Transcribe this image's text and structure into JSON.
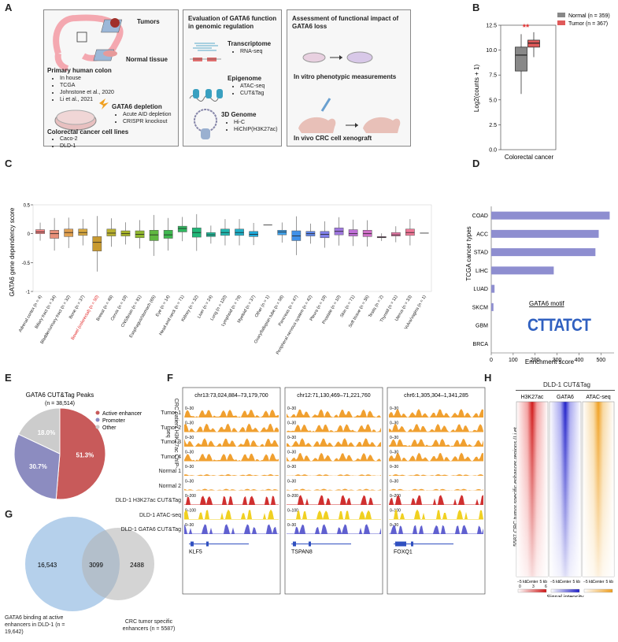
{
  "panels": {
    "A": "A",
    "B": "B",
    "C": "C",
    "D": "D",
    "E": "E",
    "F": "F",
    "G": "G",
    "H": "H"
  },
  "panelA": {
    "box1": {
      "tumors": "Tumors",
      "normal": "Normal tissue",
      "primary_title": "Primary human colon",
      "primary_items": [
        "In house",
        "TCGA",
        "Johnstone et al., 2020",
        "Li et al., 2021"
      ],
      "depletion_title": "GATA6 depletion",
      "depletion_items": [
        "Acute AID depletion",
        "CRISPR knockout"
      ],
      "lines_title": "Colorectal cancer cell lines",
      "lines_items": [
        "Caco-2",
        "DLD-1"
      ]
    },
    "box2": {
      "title": "Evaluation of GATA6 function in genomic regulation",
      "transcriptome": "Transcriptome",
      "transcriptome_items": [
        "RNA-seq"
      ],
      "epigenome": "Epigenome",
      "epigenome_items": [
        "ATAC-seq",
        "CUT&Tag"
      ],
      "genome3d": "3D Genome",
      "genome3d_items": [
        "Hi-C",
        "HiChIP(H3K27ac)"
      ]
    },
    "box3": {
      "title": "Assessment of functional impact of GATA6 loss",
      "invitro": "In vitro phenotypic measurements",
      "invivo": "In vivo CRC cell xenograft"
    }
  },
  "chart_data": [
    {
      "id": "B",
      "type": "box",
      "ylabel": "Log2(counts + 1)",
      "xlabel": "Colorectal cancer",
      "ylim": [
        0,
        12.5
      ],
      "yticks": [
        0.0,
        2.5,
        5.0,
        7.5,
        10.0,
        12.5
      ],
      "significance": "**",
      "series": [
        {
          "name": "Normal (n = 359)",
          "color": "#888888",
          "min": 5.6,
          "q1": 7.9,
          "median": 9.5,
          "q3": 10.3,
          "max": 11.6
        },
        {
          "name": "Tumor (n = 367)",
          "color": "#e05a5a",
          "min": 9.3,
          "q1": 10.3,
          "median": 10.7,
          "q3": 11.0,
          "max": 11.8
        }
      ]
    },
    {
      "id": "C",
      "type": "box",
      "ylabel": "GATA6 gene dependency score",
      "ylim": [
        -1.0,
        0.5
      ],
      "yticks": [
        0.5,
        0,
        -0.5,
        -1.0
      ],
      "highlight_index": 5,
      "categories": [
        "Adrenal cortex (n = 4)",
        "Biliary tract (n = 34)",
        "Bladder/urinary tract (n = 32)",
        "Bone (n = 37)",
        "Bowel (colorectal) (n = 50)",
        "Breast (n = 48)",
        "Cervix (n = 19)",
        "CNS/brain (n = 81)",
        "Esophagus/stomach (65)",
        "Eye (n = 14)",
        "Head and neck (n = 71)",
        "Kidney (n = 32)",
        "Liver (n = 24)",
        "Lung (n = 120)",
        "Lymphoid (n = 79)",
        "Myeloid (n = 37)",
        "Other (n = 1)",
        "Ovary/fallopian tube (n = 58)",
        "Pancreas (n = 47)",
        "Peripheral nervous system (n = 42)",
        "Pleura (n = 19)",
        "Prostate (n = 10)",
        "Skin (n = 71)",
        "Soft tissue (n = 36)",
        "Testis (n = 2)",
        "Thyroid (n = 11)",
        "Uterus (n = 33)",
        "Vulva/vagina (n = 1)"
      ],
      "boxes": [
        {
          "color": "#f08080",
          "q1": 0.0,
          "median": 0.03,
          "q3": 0.07
        },
        {
          "color": "#e8907a",
          "q1": -0.08,
          "median": 0.0,
          "q3": 0.06
        },
        {
          "color": "#e0a050",
          "q1": -0.05,
          "median": 0.02,
          "q3": 0.08
        },
        {
          "color": "#d8a840",
          "q1": -0.03,
          "median": 0.02,
          "q3": 0.08
        },
        {
          "color": "#c89a30",
          "q1": -0.3,
          "median": -0.15,
          "q3": -0.05
        },
        {
          "color": "#b8b030",
          "q1": -0.04,
          "median": 0.01,
          "q3": 0.08
        },
        {
          "color": "#a8b428",
          "q1": -0.04,
          "median": 0.0,
          "q3": 0.05
        },
        {
          "color": "#90b830",
          "q1": -0.07,
          "median": -0.01,
          "q3": 0.05
        },
        {
          "color": "#60b840",
          "q1": -0.12,
          "median": -0.02,
          "q3": 0.06
        },
        {
          "color": "#40b850",
          "q1": -0.08,
          "median": -0.02,
          "q3": 0.06
        },
        {
          "color": "#30b860",
          "q1": 0.03,
          "median": 0.09,
          "q3": 0.13
        },
        {
          "color": "#20b878",
          "q1": -0.06,
          "median": 0.02,
          "q3": 0.1
        },
        {
          "color": "#20b898",
          "q1": -0.05,
          "median": -0.02,
          "q3": 0.02
        },
        {
          "color": "#20b8b0",
          "q1": -0.03,
          "median": 0.02,
          "q3": 0.08
        },
        {
          "color": "#20b0c8",
          "q1": -0.03,
          "median": 0.02,
          "q3": 0.08
        },
        {
          "color": "#20a8d8",
          "q1": -0.05,
          "median": -0.01,
          "q3": 0.04
        },
        {
          "color": "#30a0e0",
          "q1": 0.15,
          "median": 0.15,
          "q3": 0.15
        },
        {
          "color": "#40a0e8",
          "q1": -0.02,
          "median": 0.03,
          "q3": 0.06
        },
        {
          "color": "#4090e8",
          "q1": -0.12,
          "median": -0.04,
          "q3": 0.05
        },
        {
          "color": "#6088e8",
          "q1": -0.04,
          "median": 0.0,
          "q3": 0.04
        },
        {
          "color": "#8080e8",
          "q1": -0.07,
          "median": -0.01,
          "q3": 0.04
        },
        {
          "color": "#a078e0",
          "q1": -0.02,
          "median": 0.04,
          "q3": 0.1
        },
        {
          "color": "#c070d8",
          "q1": -0.04,
          "median": 0.0,
          "q3": 0.07
        },
        {
          "color": "#d070c8",
          "q1": -0.05,
          "median": 0.0,
          "q3": 0.06
        },
        {
          "color": "#e070b8",
          "q1": -0.07,
          "median": -0.06,
          "q3": -0.05
        },
        {
          "color": "#e878a8",
          "q1": -0.04,
          "median": -0.02,
          "q3": 0.02
        },
        {
          "color": "#f07898",
          "q1": -0.03,
          "median": 0.02,
          "q3": 0.08
        },
        {
          "color": "#f08088",
          "q1": 0.01,
          "median": 0.01,
          "q3": 0.01
        }
      ]
    },
    {
      "id": "D",
      "type": "bar",
      "orientation": "horizontal",
      "ylabel": "TCGA cancer types",
      "xlabel": "Enrichment score",
      "categories": [
        "COAD",
        "ACC",
        "STAD",
        "LIHC",
        "LUAD",
        "SKCM",
        "GBM",
        "BRCA"
      ],
      "values": [
        540,
        490,
        475,
        285,
        15,
        10,
        0,
        0
      ],
      "xlim": [
        0,
        560
      ],
      "xticks": [
        0,
        100,
        200,
        300,
        400,
        500
      ],
      "color": "#8e8ed0",
      "motif_label": "GATA6 motif",
      "motif_text": "CTTATCT"
    },
    {
      "id": "E",
      "type": "pie",
      "title": "GATA6 CUT&Tag Peaks",
      "subtitle": "(n = 38,514)",
      "slices": [
        {
          "label": "Active enhancer",
          "value": 51.3,
          "text": "51.3%",
          "color": "#c85a5a"
        },
        {
          "label": "Promoter",
          "value": 30.7,
          "text": "30.7%",
          "color": "#8c8cc0"
        },
        {
          "label": "Other",
          "value": 18.0,
          "text": "18.0%",
          "color": "#cccccc"
        }
      ]
    },
    {
      "id": "G",
      "type": "venn",
      "left": {
        "value": "16,543",
        "label": "GATA6 binding at active enhancers in DLD-1  (n = 19,642)"
      },
      "overlap": "3099",
      "right": {
        "value": "2488",
        "label": "CRC tumor specific enhancers (n = 5587)"
      }
    }
  ],
  "panelF": {
    "side_label": "CRC patient H3K27ac ChIP-seq",
    "regions": [
      {
        "coord": "chr13:73,024,884–73,179,700",
        "gene": "KLF5"
      },
      {
        "coord": "chr12:71,130,469–71,221,760",
        "gene": "TSPAN8"
      },
      {
        "coord": "chr6:1,305,304–1,341,285",
        "gene": "FOXQ1"
      }
    ],
    "tracks": [
      {
        "name": "Tumor 1",
        "range": "0–30",
        "color": "#f0a030"
      },
      {
        "name": "Tumor 2",
        "range": "0–30",
        "color": "#f0a030"
      },
      {
        "name": "Tumor 3",
        "range": "0–30",
        "color": "#f0a030"
      },
      {
        "name": "Tumor 4",
        "range": "0–30",
        "color": "#f0a030"
      },
      {
        "name": "Normal 1",
        "range": "0–30",
        "color": "#f0a030"
      },
      {
        "name": "Normal 2",
        "range": "0–30",
        "color": "#f0a030"
      },
      {
        "name": "DLD-1 H3K27ac CUT&Tag",
        "range": "0–200",
        "color": "#d03030"
      },
      {
        "name": "DLD-1 ATAC-seq",
        "range": "0–100",
        "color": "#f0d020"
      },
      {
        "name": "DLD-1 GATA6 CUT&Tag",
        "range": "0–30",
        "color": "#6060d0"
      }
    ]
  },
  "panelH": {
    "title": "DLD-1 CUT&Tag",
    "columns": [
      {
        "name": "H3K27ac",
        "color": "#e02020"
      },
      {
        "name": "GATA6",
        "color": "#2020d0"
      },
      {
        "name": "ATAC-seq",
        "color": "#f0a020"
      }
    ],
    "ylabel": "5587 CRC  tumor specific enhancer regions (Li et al., 2021)",
    "xticks": [
      "−5 kb",
      "Center",
      "5 kb"
    ],
    "legend_title": "Signal intensity",
    "legend_ticks": [
      "0",
      "3",
      "6"
    ]
  }
}
